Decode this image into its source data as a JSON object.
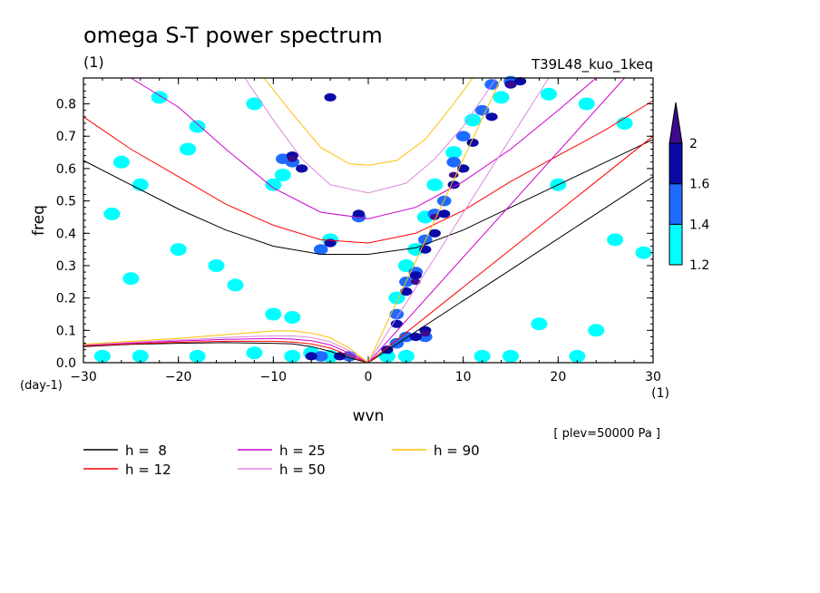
{
  "chart_data": {
    "type": "heatmap",
    "title": "omega S-T power spectrum",
    "subtitle_left": "(1)",
    "subtitle_right": "T39L48_kuo_1keq",
    "xlabel": "wvn",
    "ylabel": "freq",
    "x_unit": "(1)",
    "y_unit": "(day-1)",
    "note": "[ plev=50000 Pa ]",
    "xlim": [
      -30,
      30
    ],
    "ylim": [
      0.0,
      0.88
    ],
    "x_ticks": [
      -30,
      -20,
      -10,
      0,
      10,
      20,
      30
    ],
    "x_tick_labels": [
      "−30",
      "−20",
      "−10",
      "0",
      "10",
      "20",
      "30"
    ],
    "y_ticks": [
      0.0,
      0.1,
      0.2,
      0.3,
      0.4,
      0.5,
      0.6,
      0.7,
      0.8
    ],
    "y_tick_labels": [
      "0.0",
      "0.1",
      "0.2",
      "0.3",
      "0.4",
      "0.5",
      "0.6",
      "0.7",
      "0.8"
    ],
    "colorbar": {
      "levels": [
        1.2,
        1.4,
        1.6,
        2
      ],
      "level_labels": [
        "1.2",
        "1.4",
        "1.6",
        "2"
      ],
      "colors": [
        "#00ffff",
        "#1e6bff",
        "#0a0aa8",
        "#3c0a8c"
      ]
    },
    "contour_bands": [
      {
        "level": 1.2,
        "color": "#00ffff",
        "points": [
          [
            6,
            0.45
          ],
          [
            7,
            0.55
          ],
          [
            9,
            0.65
          ],
          [
            11,
            0.75
          ],
          [
            14,
            0.82
          ],
          [
            3,
            0.2
          ],
          [
            4,
            0.3
          ],
          [
            5,
            0.35
          ],
          [
            -10,
            0.55
          ],
          [
            -9,
            0.58
          ],
          [
            -26,
            0.62
          ],
          [
            -20,
            0.35
          ],
          [
            -16,
            0.3
          ],
          [
            -25,
            0.26
          ],
          [
            -4,
            0.38
          ],
          [
            -22,
            0.82
          ],
          [
            -18,
            0.73
          ],
          [
            -10,
            0.15
          ],
          [
            -8,
            0.14
          ],
          [
            -12,
            0.03
          ],
          [
            -8,
            0.02
          ],
          [
            -24,
            0.02
          ],
          [
            -28,
            0.02
          ],
          [
            -18,
            0.02
          ],
          [
            22,
            0.02
          ],
          [
            24,
            0.1
          ],
          [
            18,
            0.12
          ],
          [
            2,
            0.02
          ],
          [
            4,
            0.02
          ],
          [
            12,
            0.02
          ],
          [
            15,
            0.02
          ],
          [
            -6,
            0.03
          ],
          [
            -4,
            0.02
          ],
          [
            20,
            0.55
          ],
          [
            23,
            0.8
          ],
          [
            19,
            0.83
          ],
          [
            27,
            0.74
          ],
          [
            26,
            0.38
          ],
          [
            29,
            0.34
          ],
          [
            -27,
            0.46
          ],
          [
            -14,
            0.24
          ],
          [
            -19,
            0.66
          ],
          [
            -24,
            0.55
          ],
          [
            -12,
            0.8
          ]
        ]
      },
      {
        "level": 1.4,
        "color": "#1e6bff",
        "points": [
          [
            6,
            0.38
          ],
          [
            7,
            0.46
          ],
          [
            8,
            0.5
          ],
          [
            9,
            0.62
          ],
          [
            10,
            0.7
          ],
          [
            12,
            0.78
          ],
          [
            13,
            0.86
          ],
          [
            15,
            0.87
          ],
          [
            4,
            0.25
          ],
          [
            5,
            0.28
          ],
          [
            3,
            0.15
          ],
          [
            -9,
            0.63
          ],
          [
            -5,
            0.35
          ],
          [
            -1,
            0.45
          ],
          [
            -8,
            0.62
          ],
          [
            3,
            0.06
          ],
          [
            4,
            0.08
          ],
          [
            6,
            0.08
          ],
          [
            -2,
            0.02
          ],
          [
            -5,
            0.02
          ]
        ]
      },
      {
        "level": 1.6,
        "color": "#0a0aa8",
        "points": [
          [
            4,
            0.22
          ],
          [
            5,
            0.27
          ],
          [
            6,
            0.35
          ],
          [
            7,
            0.4
          ],
          [
            8,
            0.46
          ],
          [
            9,
            0.55
          ],
          [
            10,
            0.6
          ],
          [
            11,
            0.68
          ],
          [
            13,
            0.76
          ],
          [
            15,
            0.86
          ],
          [
            16,
            0.87
          ],
          [
            -8,
            0.64
          ],
          [
            -7,
            0.6
          ],
          [
            -4,
            0.37
          ],
          [
            -1,
            0.46
          ],
          [
            -4,
            0.82
          ],
          [
            5,
            0.08
          ],
          [
            6,
            0.1
          ],
          [
            3,
            0.12
          ],
          [
            -6,
            0.02
          ],
          [
            -3,
            0.02
          ],
          [
            2,
            0.04
          ]
        ]
      },
      {
        "level": 2.0,
        "color": "#3c0a8c",
        "points": [
          [
            5,
            0.25
          ],
          [
            7,
            0.45
          ],
          [
            9,
            0.58
          ],
          [
            15,
            0.86
          ],
          [
            -8,
            0.63
          ],
          [
            6,
            0.09
          ]
        ]
      }
    ],
    "legend": [
      {
        "label": "h =  8",
        "color": "#000000"
      },
      {
        "label": "h = 12",
        "color": "#ff0000"
      },
      {
        "label": "h = 25",
        "color": "#cc00cc"
      },
      {
        "label": "h = 50",
        "color": "#dd88dd"
      },
      {
        "label": "h = 90",
        "color": "#ffbf00"
      }
    ],
    "dispersion_curves": [
      {
        "h": 8,
        "color": "#000000",
        "kelvin": [
          [
            0,
            0
          ],
          [
            30,
            0.575
          ]
        ],
        "igw": [
          [
            -30,
            0.625
          ],
          [
            -25,
            0.55
          ],
          [
            -20,
            0.475
          ],
          [
            -15,
            0.41
          ],
          [
            -10,
            0.36
          ],
          [
            -5,
            0.335
          ],
          [
            0,
            0.335
          ],
          [
            5,
            0.355
          ],
          [
            10,
            0.41
          ],
          [
            15,
            0.48
          ],
          [
            20,
            0.55
          ],
          [
            25,
            0.62
          ],
          [
            30,
            0.69
          ]
        ],
        "mrg": [
          [
            -30,
            0.05
          ],
          [
            -25,
            0.057
          ],
          [
            -20,
            0.06
          ],
          [
            -15,
            0.062
          ],
          [
            -10,
            0.06
          ],
          [
            -8,
            0.058
          ],
          [
            -6,
            0.05
          ],
          [
            -4,
            0.035
          ],
          [
            -2,
            0.015
          ],
          [
            0,
            0.0
          ]
        ]
      },
      {
        "h": 12,
        "color": "#ff0000",
        "kelvin": [
          [
            0,
            0
          ],
          [
            30,
            0.7
          ]
        ],
        "igw": [
          [
            -30,
            0.76
          ],
          [
            -25,
            0.66
          ],
          [
            -20,
            0.575
          ],
          [
            -15,
            0.49
          ],
          [
            -10,
            0.425
          ],
          [
            -5,
            0.38
          ],
          [
            0,
            0.37
          ],
          [
            5,
            0.4
          ],
          [
            10,
            0.47
          ],
          [
            15,
            0.56
          ],
          [
            20,
            0.64
          ],
          [
            25,
            0.72
          ],
          [
            30,
            0.81
          ]
        ],
        "mrg": [
          [
            -30,
            0.052
          ],
          [
            -25,
            0.058
          ],
          [
            -20,
            0.063
          ],
          [
            -15,
            0.066
          ],
          [
            -10,
            0.066
          ],
          [
            -8,
            0.064
          ],
          [
            -6,
            0.058
          ],
          [
            -4,
            0.045
          ],
          [
            -2,
            0.022
          ],
          [
            0,
            0.0
          ]
        ]
      },
      {
        "h": 25,
        "color": "#cc00cc",
        "kelvin": [
          [
            0,
            0
          ],
          [
            27,
            0.88
          ]
        ],
        "igw": [
          [
            -25,
            0.88
          ],
          [
            -20,
            0.79
          ],
          [
            -15,
            0.66
          ],
          [
            -10,
            0.54
          ],
          [
            -5,
            0.465
          ],
          [
            0,
            0.445
          ],
          [
            5,
            0.48
          ],
          [
            10,
            0.56
          ],
          [
            15,
            0.66
          ],
          [
            20,
            0.78
          ],
          [
            24,
            0.88
          ]
        ],
        "mrg": [
          [
            -30,
            0.054
          ],
          [
            -25,
            0.061
          ],
          [
            -20,
            0.067
          ],
          [
            -15,
            0.072
          ],
          [
            -10,
            0.075
          ],
          [
            -8,
            0.073
          ],
          [
            -6,
            0.068
          ],
          [
            -4,
            0.055
          ],
          [
            -2,
            0.03
          ],
          [
            0,
            0.0
          ]
        ]
      },
      {
        "h": 50,
        "color": "#dd88dd",
        "kelvin": [
          [
            0,
            0
          ],
          [
            19,
            0.88
          ]
        ],
        "igw": [
          [
            -13,
            0.88
          ],
          [
            -10,
            0.75
          ],
          [
            -7,
            0.63
          ],
          [
            -4,
            0.55
          ],
          [
            0,
            0.525
          ],
          [
            4,
            0.555
          ],
          [
            7,
            0.63
          ],
          [
            10,
            0.73
          ],
          [
            13.5,
            0.88
          ]
        ],
        "mrg": [
          [
            -30,
            0.055
          ],
          [
            -25,
            0.063
          ],
          [
            -20,
            0.07
          ],
          [
            -15,
            0.078
          ],
          [
            -10,
            0.083
          ],
          [
            -8,
            0.083
          ],
          [
            -6,
            0.078
          ],
          [
            -4,
            0.065
          ],
          [
            -2,
            0.037
          ],
          [
            0,
            0.0
          ]
        ]
      },
      {
        "h": 90,
        "color": "#ffbf00",
        "kelvin": [
          [
            0,
            0
          ],
          [
            14,
            0.88
          ]
        ],
        "igw": [
          [
            -11,
            0.88
          ],
          [
            -8,
            0.77
          ],
          [
            -5,
            0.665
          ],
          [
            -2,
            0.615
          ],
          [
            0,
            0.61
          ],
          [
            3,
            0.625
          ],
          [
            6,
            0.69
          ],
          [
            9,
            0.8
          ],
          [
            11,
            0.88
          ]
        ],
        "mrg": [
          [
            -30,
            0.057
          ],
          [
            -25,
            0.066
          ],
          [
            -20,
            0.075
          ],
          [
            -15,
            0.087
          ],
          [
            -10,
            0.098
          ],
          [
            -8,
            0.098
          ],
          [
            -6,
            0.092
          ],
          [
            -4,
            0.077
          ],
          [
            -2,
            0.045
          ],
          [
            0,
            0.0
          ]
        ]
      }
    ]
  }
}
